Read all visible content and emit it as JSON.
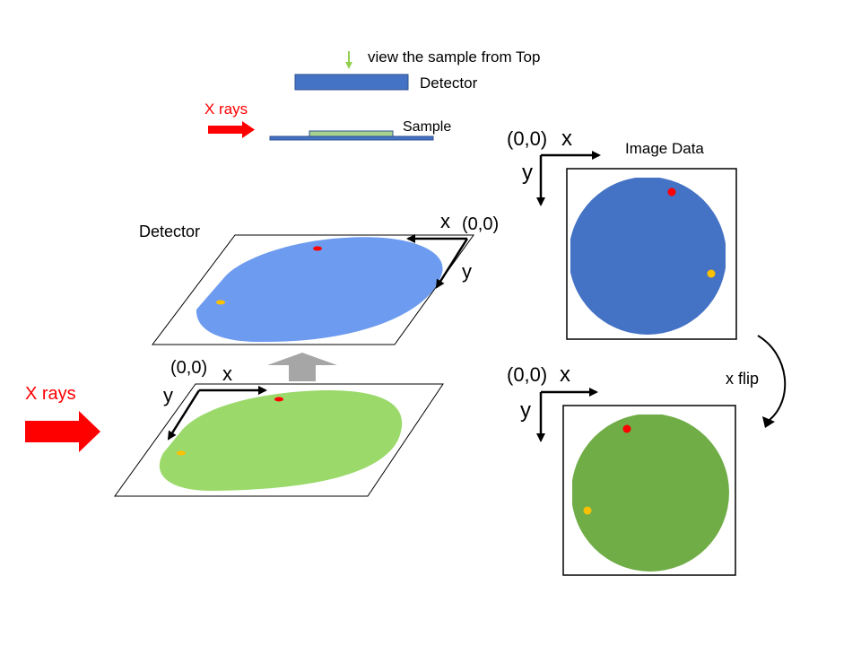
{
  "top_view": {
    "hint": "view the sample from Top",
    "detector_label": "Detector",
    "sample_label": "Sample",
    "xrays_label": "X rays"
  },
  "perspective": {
    "detector_label": "Detector",
    "xrays_label": "X rays",
    "detector_axes": {
      "origin": "(0,0)",
      "x": "x",
      "y": "y"
    },
    "sample_axes": {
      "origin": "(0,0)",
      "x": "x",
      "y": "y"
    }
  },
  "image_data": {
    "title": "Image Data",
    "axes": {
      "origin": "(0,0)",
      "x": "x",
      "y": "y"
    }
  },
  "flipped": {
    "axes": {
      "origin": "(0,0)",
      "x": "x",
      "y": "y"
    },
    "flip_label": "x flip"
  },
  "colors": {
    "xray_red": "#ff0000",
    "detector_blue": "#4472c4",
    "detector_light_blue": "#6d9bef",
    "sample_green": "#70ad47",
    "sample_light_green": "#9bd96b",
    "spot_red": "#ff0000",
    "spot_yellow": "#ffc000",
    "projection_arrow_gray": "#a6a6a6",
    "view_arrow_green": "#92d050"
  }
}
